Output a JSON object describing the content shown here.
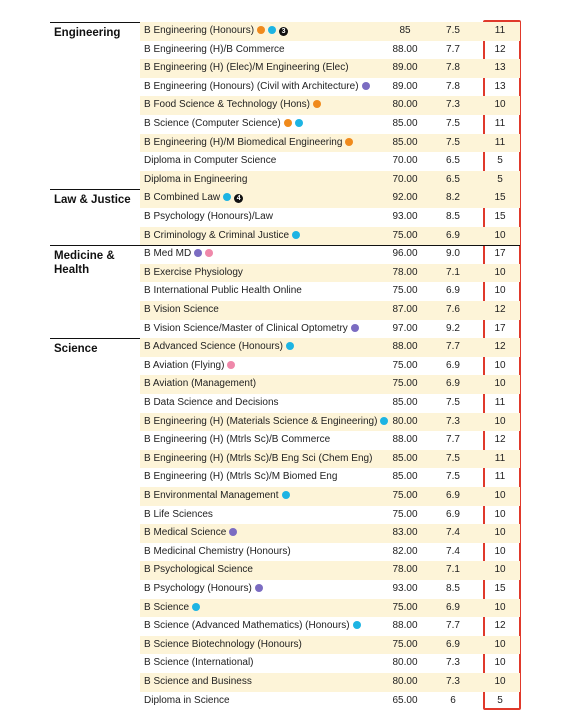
{
  "table": {
    "sections": [
      {
        "name": "Engineering",
        "rows": [
          [
            "B Engineering (Honours)",
            "85",
            "7.5",
            "11",
            "3"
          ],
          [
            "B Engineering (H)/B Commerce",
            "88.00",
            "7.7",
            "12"
          ],
          [
            "B Engineering (H) (Elec)/M Engineering (Elec)",
            "89.00",
            "7.8",
            "13"
          ],
          [
            "B Engineering (Honours) (Civil with Architecture)",
            "89.00",
            "7.8",
            "13"
          ],
          [
            "B Food Science & Technology (Hons)",
            "80.00",
            "7.3",
            "10"
          ],
          [
            "B Science (Computer Science)",
            "85.00",
            "7.5",
            "11"
          ],
          [
            "B Engineering (H)/M Biomedical Engineering",
            "85.00",
            "7.5",
            "11"
          ],
          [
            "Diploma in Computer Science",
            "70.00",
            "6.5",
            "5"
          ],
          [
            "Diploma in Engineering",
            "70.00",
            "6.5",
            "5"
          ]
        ]
      },
      {
        "name": "Law & Justice",
        "rows": [
          [
            "B Combined Law",
            "92.00",
            "8.2",
            "15",
            "4"
          ],
          [
            "B Psychology (Honours)/Law",
            "93.00",
            "8.5",
            "15"
          ],
          [
            "B Criminology & Criminal Justice",
            "75.00",
            "6.9",
            "10"
          ]
        ]
      },
      {
        "name": "Medicine & Health",
        "rows": [
          [
            "B Med MD",
            "96.00",
            "9.0",
            "17"
          ],
          [
            "B Exercise Physiology",
            "78.00",
            "7.1",
            "10"
          ],
          [
            "B International Public Health Online",
            "75.00",
            "6.9",
            "10"
          ],
          [
            "B Vision Science",
            "87.00",
            "7.6",
            "12"
          ],
          [
            "B Vision Science/Master of Clinical Optometry",
            "97.00",
            "9.2",
            "17"
          ]
        ]
      },
      {
        "name": "Science",
        "rows": [
          [
            "B Advanced Science (Honours)",
            "88.00",
            "7.7",
            "12"
          ],
          [
            "B Aviation (Flying)",
            "75.00",
            "6.9",
            "10"
          ],
          [
            "B Aviation (Management)",
            "75.00",
            "6.9",
            "10"
          ],
          [
            "B Data Science and Decisions",
            "85.00",
            "7.5",
            "11"
          ],
          [
            "B Engineering (H) (Materials Science & Engineering)",
            "80.00",
            "7.3",
            "10"
          ],
          [
            "B Engineering (H) (Mtrls Sc)/B Commerce",
            "88.00",
            "7.7",
            "12"
          ],
          [
            "B Engineering (H) (Mtrls Sc)/B Eng Sci (Chem Eng)",
            "85.00",
            "7.5",
            "11"
          ],
          [
            "B Engineering (H) (Mtrls Sc)/M Biomed Eng",
            "85.00",
            "7.5",
            "11"
          ],
          [
            "B Environmental Management",
            "75.00",
            "6.9",
            "10"
          ],
          [
            "B Life Sciences",
            "75.00",
            "6.9",
            "10"
          ],
          [
            "B Medical Science",
            "83.00",
            "7.4",
            "10"
          ],
          [
            "B Medicinal Chemistry (Honours)",
            "82.00",
            "7.4",
            "10"
          ],
          [
            "B Psychological Science",
            "78.00",
            "7.1",
            "10"
          ],
          [
            "B Psychology (Honours)",
            "93.00",
            "8.5",
            "15"
          ],
          [
            "B Science",
            "75.00",
            "6.9",
            "10"
          ],
          [
            "B Science (Advanced Mathematics) (Honours)",
            "88.00",
            "7.7",
            "12"
          ],
          [
            "B Science Biotechnology (Honours)",
            "75.00",
            "6.9",
            "10"
          ],
          [
            "B Science (International)",
            "80.00",
            "7.3",
            "10"
          ],
          [
            "B Science and Business",
            "80.00",
            "7.3",
            "10"
          ],
          [
            "Diploma in Science",
            "65.00",
            "6",
            "5"
          ]
        ]
      }
    ]
  }
}
